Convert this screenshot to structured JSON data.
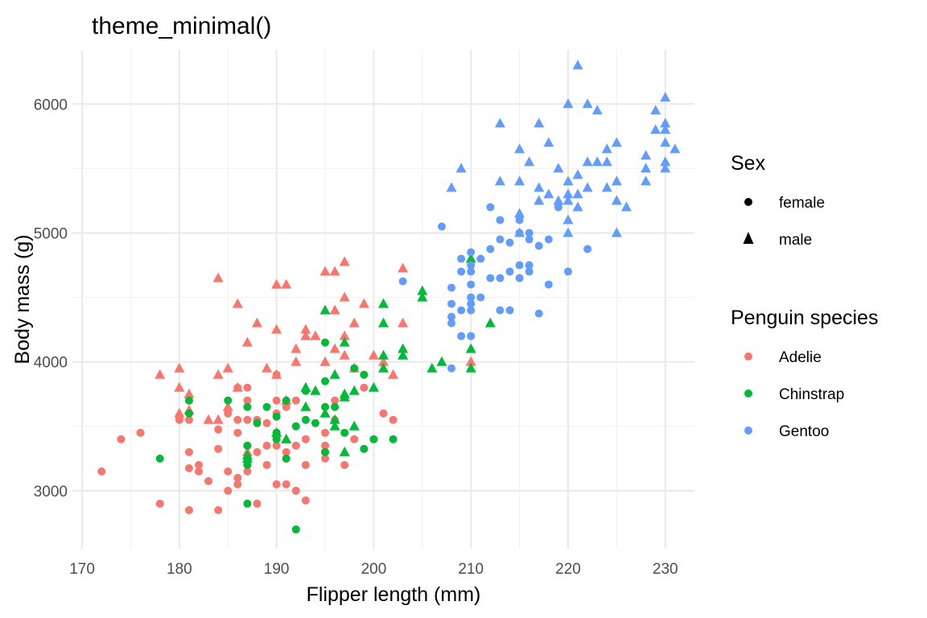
{
  "chart_data": {
    "type": "scatter",
    "title": "theme_minimal()",
    "xlabel": "Flipper length (mm)",
    "ylabel": "Body mass (g)",
    "xlim": [
      169,
      233
    ],
    "ylim": [
      2550,
      6420
    ],
    "x_ticks": [
      170,
      180,
      190,
      200,
      210,
      220,
      230
    ],
    "y_ticks": [
      3000,
      4000,
      5000,
      6000
    ],
    "grid": true,
    "legend_placement": "right",
    "shape_legend": {
      "title": "Sex",
      "entries": [
        {
          "label": "female",
          "shape": "circle"
        },
        {
          "label": "male",
          "shape": "triangle"
        }
      ]
    },
    "color_legend": {
      "title": "Penguin species",
      "entries": [
        {
          "label": "Adelie",
          "color": "#f8766d"
        },
        {
          "label": "Chinstrap",
          "color": "#00ba38"
        },
        {
          "label": "Gentoo",
          "color": "#619cff"
        }
      ]
    },
    "series": [
      {
        "name": "Adelie",
        "color": "#f8766d",
        "female": [
          [
            172,
            3150
          ],
          [
            174,
            3400
          ],
          [
            176,
            3450
          ],
          [
            178,
            2900
          ],
          [
            180,
            3550
          ],
          [
            181,
            2850
          ],
          [
            181,
            3175
          ],
          [
            181,
            3300
          ],
          [
            181,
            3550
          ],
          [
            182,
            3200
          ],
          [
            182,
            3150
          ],
          [
            183,
            3075
          ],
          [
            184,
            2850
          ],
          [
            184,
            3325
          ],
          [
            184,
            3475
          ],
          [
            185,
            3000
          ],
          [
            185,
            3150
          ],
          [
            185,
            3600
          ],
          [
            186,
            3100
          ],
          [
            186,
            3050
          ],
          [
            186,
            3450
          ],
          [
            186,
            3550
          ],
          [
            186,
            3800
          ],
          [
            187,
            3150
          ],
          [
            187,
            3350
          ],
          [
            187,
            3550
          ],
          [
            187,
            3700
          ],
          [
            187,
            3800
          ],
          [
            188,
            2900
          ],
          [
            188,
            3300
          ],
          [
            188,
            3550
          ],
          [
            189,
            3200
          ],
          [
            189,
            3350
          ],
          [
            189,
            3525
          ],
          [
            190,
            3050
          ],
          [
            190,
            3350
          ],
          [
            190,
            3450
          ],
          [
            190,
            3600
          ],
          [
            190,
            3700
          ],
          [
            190,
            3900
          ],
          [
            191,
            3050
          ],
          [
            191,
            3250
          ],
          [
            191,
            3300
          ],
          [
            191,
            3650
          ],
          [
            192,
            3000
          ],
          [
            192,
            3350
          ],
          [
            192,
            3700
          ],
          [
            193,
            2925
          ],
          [
            193,
            3200
          ],
          [
            193,
            3400
          ],
          [
            195,
            3250
          ],
          [
            195,
            3300
          ],
          [
            195,
            3350
          ],
          [
            195,
            3450
          ],
          [
            196,
            3550
          ],
          [
            196,
            3700
          ],
          [
            197,
            3200
          ],
          [
            198,
            3400
          ],
          [
            199,
            3800
          ],
          [
            201,
            3600
          ],
          [
            202,
            3550
          ]
        ],
        "male": [
          [
            178,
            3900
          ],
          [
            180,
            3600
          ],
          [
            180,
            3800
          ],
          [
            180,
            3950
          ],
          [
            181,
            3625
          ],
          [
            181,
            3750
          ],
          [
            183,
            3550
          ],
          [
            184,
            3550
          ],
          [
            184,
            3900
          ],
          [
            184,
            4650
          ],
          [
            185,
            3650
          ],
          [
            185,
            3950
          ],
          [
            186,
            3800
          ],
          [
            186,
            4450
          ],
          [
            187,
            3300
          ],
          [
            187,
            4150
          ],
          [
            188,
            4300
          ],
          [
            189,
            3950
          ],
          [
            190,
            3900
          ],
          [
            190,
            4250
          ],
          [
            190,
            4600
          ],
          [
            191,
            3700
          ],
          [
            191,
            4600
          ],
          [
            192,
            4000
          ],
          [
            192,
            4100
          ],
          [
            193,
            4200
          ],
          [
            193,
            4250
          ],
          [
            194,
            4200
          ],
          [
            195,
            4700
          ],
          [
            195,
            4000
          ],
          [
            196,
            4100
          ],
          [
            196,
            4400
          ],
          [
            196,
            4700
          ],
          [
            197,
            4050
          ],
          [
            197,
            4200
          ],
          [
            197,
            4500
          ],
          [
            197,
            4775
          ],
          [
            198,
            4300
          ],
          [
            198,
            3950
          ],
          [
            199,
            4450
          ],
          [
            200,
            4050
          ],
          [
            201,
            4000
          ],
          [
            202,
            3900
          ],
          [
            203,
            4725
          ],
          [
            203,
            4300
          ],
          [
            210,
            4000
          ]
        ]
      },
      {
        "name": "Chinstrap",
        "color": "#00ba38",
        "female": [
          [
            178,
            3250
          ],
          [
            181,
            3600
          ],
          [
            181,
            3700
          ],
          [
            185,
            3700
          ],
          [
            187,
            2900
          ],
          [
            187,
            3200
          ],
          [
            187,
            3350
          ],
          [
            187,
            3650
          ],
          [
            188,
            3525
          ],
          [
            189,
            3650
          ],
          [
            190,
            3400
          ],
          [
            190,
            3450
          ],
          [
            190,
            3575
          ],
          [
            191,
            3250
          ],
          [
            191,
            3700
          ],
          [
            192,
            2700
          ],
          [
            192,
            3500
          ],
          [
            193,
            3775
          ],
          [
            193,
            3550
          ],
          [
            194,
            3525
          ],
          [
            195,
            3300
          ],
          [
            195,
            3650
          ],
          [
            195,
            3850
          ],
          [
            195,
            4150
          ],
          [
            196,
            3650
          ],
          [
            197,
            3450
          ],
          [
            198,
            3950
          ],
          [
            199,
            3325
          ],
          [
            199,
            3900
          ],
          [
            200,
            3400
          ],
          [
            202,
            3400
          ]
        ],
        "male": [
          [
            187,
            3250
          ],
          [
            187,
            3275
          ],
          [
            190,
            3450
          ],
          [
            191,
            3400
          ],
          [
            193,
            3800
          ],
          [
            193,
            3650
          ],
          [
            194,
            3775
          ],
          [
            195,
            3600
          ],
          [
            195,
            4400
          ],
          [
            196,
            3500
          ],
          [
            196,
            3550
          ],
          [
            196,
            3900
          ],
          [
            197,
            3300
          ],
          [
            197,
            3725
          ],
          [
            197,
            3750
          ],
          [
            197,
            4150
          ],
          [
            198,
            3500
          ],
          [
            198,
            3775
          ],
          [
            200,
            3800
          ],
          [
            201,
            3950
          ],
          [
            201,
            4050
          ],
          [
            201,
            4300
          ],
          [
            201,
            4450
          ],
          [
            203,
            4050
          ],
          [
            203,
            4100
          ],
          [
            205,
            4550
          ],
          [
            205,
            4500
          ],
          [
            206,
            3950
          ],
          [
            207,
            4000
          ],
          [
            210,
            3950
          ],
          [
            210,
            4100
          ],
          [
            210,
            4800
          ],
          [
            212,
            4300
          ]
        ]
      },
      {
        "name": "Gentoo",
        "color": "#619cff",
        "female": [
          [
            203,
            4625
          ],
          [
            207,
            5050
          ],
          [
            208,
            3950
          ],
          [
            208,
            4300
          ],
          [
            208,
            4350
          ],
          [
            208,
            4450
          ],
          [
            208,
            4575
          ],
          [
            209,
            4200
          ],
          [
            209,
            4400
          ],
          [
            209,
            4700
          ],
          [
            209,
            4800
          ],
          [
            210,
            4200
          ],
          [
            210,
            4400
          ],
          [
            210,
            4450
          ],
          [
            210,
            4500
          ],
          [
            210,
            4600
          ],
          [
            210,
            4700
          ],
          [
            210,
            4750
          ],
          [
            210,
            4850
          ],
          [
            211,
            4500
          ],
          [
            211,
            4800
          ],
          [
            212,
            4650
          ],
          [
            212,
            4875
          ],
          [
            212,
            5200
          ],
          [
            213,
            4400
          ],
          [
            213,
            4650
          ],
          [
            213,
            4950
          ],
          [
            213,
            5100
          ],
          [
            214,
            4400
          ],
          [
            214,
            4700
          ],
          [
            214,
            4925
          ],
          [
            215,
            4650
          ],
          [
            215,
            4750
          ],
          [
            215,
            5000
          ],
          [
            215,
            5100
          ],
          [
            216,
            4700
          ],
          [
            216,
            4750
          ],
          [
            216,
            4950
          ],
          [
            216,
            5000
          ],
          [
            217,
            4375
          ],
          [
            217,
            4900
          ],
          [
            218,
            4600
          ],
          [
            218,
            4950
          ],
          [
            219,
            5200
          ],
          [
            220,
            4700
          ],
          [
            222,
            4875
          ]
        ],
        "male": [
          [
            208,
            5350
          ],
          [
            209,
            5500
          ],
          [
            213,
            5850
          ],
          [
            213,
            5400
          ],
          [
            215,
            5650
          ],
          [
            215,
            5400
          ],
          [
            215,
            5150
          ],
          [
            215,
            5000
          ],
          [
            216,
            5550
          ],
          [
            217,
            5850
          ],
          [
            217,
            5350
          ],
          [
            217,
            5250
          ],
          [
            218,
            5700
          ],
          [
            218,
            5300
          ],
          [
            219,
            5500
          ],
          [
            219,
            5250
          ],
          [
            220,
            6000
          ],
          [
            220,
            5300
          ],
          [
            220,
            5250
          ],
          [
            220,
            5100
          ],
          [
            220,
            5000
          ],
          [
            220,
            5400
          ],
          [
            221,
            6300
          ],
          [
            221,
            5450
          ],
          [
            221,
            5300
          ],
          [
            221,
            5200
          ],
          [
            222,
            6000
          ],
          [
            222,
            5550
          ],
          [
            222,
            5350
          ],
          [
            223,
            5950
          ],
          [
            223,
            5550
          ],
          [
            224,
            5650
          ],
          [
            224,
            5350
          ],
          [
            224,
            5550
          ],
          [
            225,
            5700
          ],
          [
            225,
            5400
          ],
          [
            225,
            5250
          ],
          [
            225,
            5000
          ],
          [
            226,
            5200
          ],
          [
            228,
            5600
          ],
          [
            228,
            5500
          ],
          [
            228,
            5400
          ],
          [
            229,
            5950
          ],
          [
            229,
            5800
          ],
          [
            230,
            6050
          ],
          [
            230,
            5850
          ],
          [
            230,
            5800
          ],
          [
            230,
            5700
          ],
          [
            230,
            5550
          ],
          [
            230,
            5500
          ],
          [
            231,
            5650
          ]
        ]
      }
    ]
  }
}
